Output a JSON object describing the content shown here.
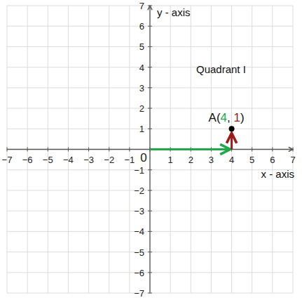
{
  "chart_data": {
    "type": "scatter",
    "x_label": "x - axis",
    "y_label": "y - axis",
    "xlim": [
      -7,
      7
    ],
    "ylim": [
      -7,
      7
    ],
    "xticks": [
      {
        "value": -7,
        "label": "−7"
      },
      {
        "value": -6,
        "label": "−6"
      },
      {
        "value": -5,
        "label": "−5"
      },
      {
        "value": -4,
        "label": "−4"
      },
      {
        "value": -3,
        "label": "−3"
      },
      {
        "value": -2,
        "label": "−2"
      },
      {
        "value": -1,
        "label": "−1"
      },
      0,
      1,
      2,
      3,
      4,
      5,
      6,
      7
    ],
    "yticks": [
      {
        "value": -7,
        "label": "−7"
      },
      {
        "value": -6,
        "label": "−6"
      },
      {
        "value": -5,
        "label": "−5"
      },
      {
        "value": -4,
        "label": "−4"
      },
      {
        "value": -3,
        "label": "−3"
      },
      {
        "value": -2,
        "label": "−2"
      },
      {
        "value": -1,
        "label": "−1"
      },
      1,
      2,
      3,
      4,
      5,
      6,
      7
    ],
    "grid": true,
    "annotations": [
      "Quadrant I"
    ],
    "series": [
      {
        "name": "A",
        "x": [
          4
        ],
        "values": [
          1
        ],
        "color": "#000000",
        "marker": "circle",
        "value_labels": [
          "A(4, 1)"
        ]
      }
    ]
  }
}
